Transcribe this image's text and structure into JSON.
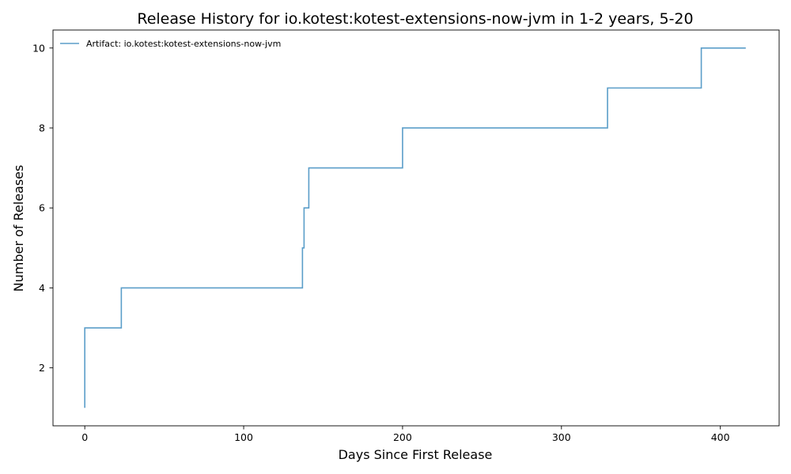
{
  "chart_data": {
    "type": "line",
    "step": "post",
    "title": "Release History for io.kotest:kotest-extensions-now-jvm in 1-2 years, 5-20",
    "xlabel": "Days Since First Release",
    "ylabel": "Number of Releases",
    "xlim": [
      -20,
      437
    ],
    "ylim": [
      0.55,
      10.45
    ],
    "xticks": [
      0,
      100,
      200,
      300,
      400
    ],
    "yticks": [
      2,
      4,
      6,
      8,
      10
    ],
    "grid": false,
    "legend_position": "top-left",
    "series": [
      {
        "name": "Artifact: io.kotest:kotest-extensions-now-jvm",
        "color": "#5b9ec9",
        "x": [
          0,
          0,
          0,
          23,
          137,
          138,
          141,
          200,
          329,
          388,
          416
        ],
        "y": [
          1,
          2,
          3,
          4,
          5,
          6,
          7,
          8,
          9,
          10,
          10
        ]
      }
    ]
  }
}
